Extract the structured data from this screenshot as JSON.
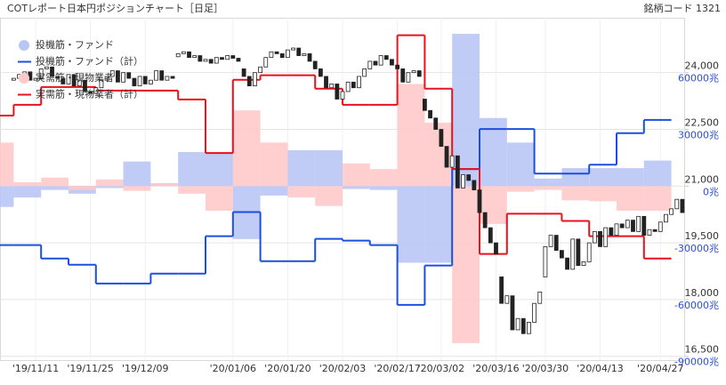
{
  "chart_data": {
    "type": "combo",
    "title": "COTレポート日本円ポジションチャート［日足］",
    "code_label": "銘柄コード 1321",
    "xlim": [
      -2.5,
      122.5
    ],
    "xticks": [
      {
        "value": 4,
        "label": "'19/11/11"
      },
      {
        "value": 14,
        "label": "'19/11/25"
      },
      {
        "value": 24,
        "label": "'19/12/09"
      },
      {
        "value": 40,
        "label": "'20/01/06"
      },
      {
        "value": 50,
        "label": "'20/01/20"
      },
      {
        "value": 60,
        "label": "'20/02/03"
      },
      {
        "value": 70,
        "label": "'20/02/17"
      },
      {
        "value": 78,
        "label": "'20/03/02"
      },
      {
        "value": 88,
        "label": "'20/03/16"
      },
      {
        "value": 97,
        "label": "'20/03/30"
      },
      {
        "value": 107,
        "label": "'20/04/13"
      },
      {
        "value": 118,
        "label": "'20/04/27"
      }
    ],
    "ylim": [
      16400,
      25450
    ],
    "yticks": [
      {
        "value": 16500,
        "label": "16,500"
      },
      {
        "value": 18000,
        "label": "18,000"
      },
      {
        "value": 19500,
        "label": "19,500"
      },
      {
        "value": 21000,
        "label": "21,000"
      },
      {
        "value": 22500,
        "label": "22,500"
      },
      {
        "value": 24000,
        "label": "24,000"
      }
    ],
    "y2lim": [
      -92000,
      89000
    ],
    "y2ticks": [
      {
        "value": -90000,
        "label": "-90000兆"
      },
      {
        "value": -60000,
        "label": "-60000兆"
      },
      {
        "value": -30000,
        "label": "-30000兆"
      },
      {
        "value": 0,
        "label": "0兆"
      },
      {
        "value": 30000,
        "label": "30000兆"
      },
      {
        "value": 60000,
        "label": "60000兆"
      }
    ],
    "grid": true,
    "week_x": [
      -2.5,
      2.5,
      7.5,
      12.5,
      17.5,
      22.5,
      27.5,
      32.5,
      37.5,
      42.5,
      47.5,
      52.5,
      57.5,
      62.5,
      67.5,
      72.5,
      77.5,
      82.5,
      87.5,
      92.5,
      97.5,
      102.5,
      107.5,
      112.5,
      117.5
    ],
    "series": [
      {
        "name": "投機筋・ファンド",
        "type": "bar",
        "axis": "y2",
        "color": "#b9c5f5",
        "values": [
          -11000,
          -6000,
          -2000,
          -4000,
          -1000,
          13000,
          1500,
          18000,
          18000,
          -28000,
          -5000,
          19000,
          19000,
          -1500,
          -2000,
          -40500,
          -40500,
          80500,
          36000,
          23000,
          4000,
          9500,
          9500,
          9500,
          13500
        ]
      },
      {
        "name": "投機筋・ファンド（計）",
        "type": "step",
        "axis": "y2",
        "color": "#1c4fe0",
        "values": [
          -31200,
          -31200,
          -38300,
          -41600,
          -51500,
          -51500,
          -46300,
          -46300,
          -26500,
          -13700,
          -39700,
          -39700,
          -27900,
          -28800,
          -31200,
          -62800,
          -42000,
          9000,
          30200,
          30200,
          6600,
          6600,
          11300,
          28000,
          35000
        ]
      },
      {
        "name": "実需筋・現物業者",
        "type": "bar",
        "axis": "y2",
        "color": "#ffc9ca",
        "values": [
          23000,
          2000,
          4500,
          -2000,
          3500,
          -2500,
          1500,
          -4000,
          -13000,
          40000,
          23000,
          -6000,
          -10500,
          12000,
          9000,
          54000,
          33500,
          -83000,
          -20000,
          -3000,
          -2000,
          -7500,
          -8000,
          -13000,
          -13000
        ]
      },
      {
        "name": "実需筋・現物業者（計）",
        "type": "step",
        "axis": "y2",
        "color": "#e8121c",
        "values": [
          37300,
          43000,
          52400,
          52400,
          50500,
          50500,
          50500,
          45800,
          17500,
          56200,
          58600,
          58600,
          51500,
          43000,
          43000,
          79800,
          51500,
          9000,
          -35900,
          -14600,
          -14600,
          -18400,
          -26500,
          -26500,
          -38300
        ]
      }
    ],
    "candles": {
      "up_color": "#ffffff",
      "down_color": "#222222",
      "open": [
        23800,
        23850,
        23950,
        24020,
        23800,
        23850,
        24100,
        24150,
        23900,
        23850,
        23700,
        23950,
        23650,
        23800,
        23500,
        23450,
        23600,
        23800,
        23900,
        24050,
        23750,
        24000,
        23850,
        23650,
        23900,
        23700,
        23800,
        24050,
        23800,
        23900,
        24420,
        24500,
        24550,
        24400,
        24450,
        24300,
        24350,
        24250,
        24400,
        24350,
        24450,
        24380,
        24100,
        23900,
        23650,
        24000,
        24150,
        24400,
        24550,
        24500,
        24400,
        24600,
        24650,
        24450,
        24500,
        24300,
        24100,
        23900,
        23600,
        23700,
        23300,
        23500,
        23750,
        23600,
        23900,
        24100,
        24300,
        24200,
        24450,
        24350,
        24200,
        24100,
        23750,
        24000,
        24050,
        23300,
        23000,
        22800,
        22500,
        22050,
        21500,
        21800,
        20950,
        21300,
        21150,
        20900,
        20300,
        19900,
        19500,
        18600,
        17900,
        18100,
        17200,
        17500,
        17100,
        17400,
        17900,
        18600,
        19400,
        19700,
        19300,
        19100,
        18800,
        19600,
        18900,
        19000,
        19500,
        19800,
        19400,
        19900,
        19700,
        20000,
        19900,
        20100,
        19800,
        20200,
        19700,
        19850,
        19800,
        20050,
        20250,
        20400,
        20650
      ],
      "close": [
        23850,
        23950,
        24020,
        23800,
        23850,
        24100,
        24150,
        23900,
        23850,
        23700,
        23950,
        23650,
        23800,
        23500,
        23450,
        23600,
        23800,
        23900,
        24050,
        23750,
        24000,
        23850,
        23650,
        23900,
        23700,
        23800,
        24050,
        23800,
        23900,
        23850,
        24500,
        24550,
        24400,
        24450,
        24300,
        24350,
        24250,
        24400,
        24350,
        24450,
        24380,
        24300,
        23900,
        23650,
        24000,
        24150,
        24400,
        24550,
        24500,
        24400,
        24600,
        24650,
        24450,
        24500,
        24300,
        24100,
        23900,
        23600,
        23700,
        23300,
        23500,
        23750,
        23600,
        23900,
        24100,
        24300,
        24200,
        24450,
        24350,
        24200,
        24100,
        23750,
        24000,
        24050,
        23900,
        23000,
        22800,
        22500,
        22050,
        21500,
        21800,
        20950,
        21300,
        21150,
        20900,
        20300,
        19900,
        19500,
        19200,
        17900,
        18100,
        17200,
        17500,
        17100,
        17400,
        17900,
        18200,
        19400,
        19700,
        19300,
        19100,
        18800,
        19600,
        18900,
        19000,
        19500,
        19800,
        19400,
        19900,
        19700,
        20000,
        19900,
        20100,
        19800,
        20200,
        19700,
        19850,
        19800,
        20050,
        20250,
        20400,
        20650,
        20300
      ]
    }
  }
}
